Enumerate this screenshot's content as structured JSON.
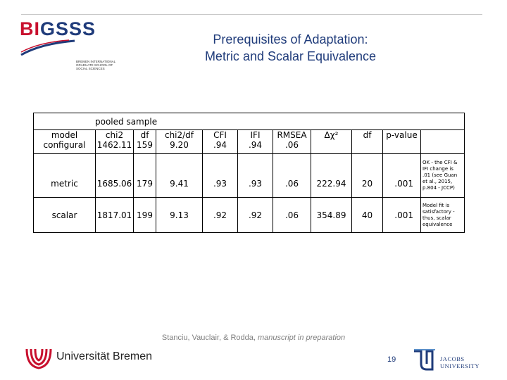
{
  "header": {
    "logo_main_b": "BI",
    "logo_main_rest": "GSSS",
    "logo_sub": "BREMEN INTERNATIONAL GRADUATE SCHOOL OF SOCIAL SCIENCES",
    "title_line1": "Prerequisites of Adaptation:",
    "title_line2": "Metric and Scalar Equivalence"
  },
  "table": {
    "group_label": "pooled sample",
    "header_row": [
      "model",
      "chi2",
      "df",
      "chi2/df",
      "CFI",
      "IFI",
      "RMSEA",
      "Δχ²",
      "df",
      "p-value"
    ],
    "rows": [
      {
        "model": "configural",
        "chi2": "1462.11",
        "df": "159",
        "chi2df": "9.20",
        "cfi": ".94",
        "ifi": ".94",
        "rmsea": ".06",
        "dchi2": "",
        "ddf": "",
        "p": "",
        "note": ""
      },
      {
        "model": "metric",
        "chi2": "1685.06",
        "df": "179",
        "chi2df": "9.41",
        "cfi": ".93",
        "ifi": ".93",
        "rmsea": ".06",
        "dchi2": "222.94",
        "ddf": "20",
        "p": ".001",
        "note": "OK - the CFI & IFI change is .01 (see Guan et al., 2015, p.804 - JCCP)"
      },
      {
        "model": "scalar",
        "chi2": "1817.01",
        "df": "199",
        "chi2df": "9.13",
        "cfi": ".92",
        "ifi": ".92",
        "rmsea": ".06",
        "dchi2": "354.89",
        "ddf": "40",
        "p": ".001",
        "note": "Model fit is satisfactory - thus, scalar equivalence"
      }
    ]
  },
  "footer": {
    "cite_authors": "Stanciu, Vauclair, & Rodda, ",
    "cite_status": "manuscript in preparation",
    "university": "Universität Bremen",
    "page_number": "19",
    "jacobs_line1": "JACOBS",
    "jacobs_line2": "UNIVERSITY"
  },
  "colors": {
    "title_blue": "#1f3b7a",
    "bigsss_red": "#c8102e",
    "uni_red": "#c8102e"
  },
  "icons": [
    "bigsss-logo",
    "university-bremen-logo-icon",
    "jacobs-university-logo-icon"
  ]
}
